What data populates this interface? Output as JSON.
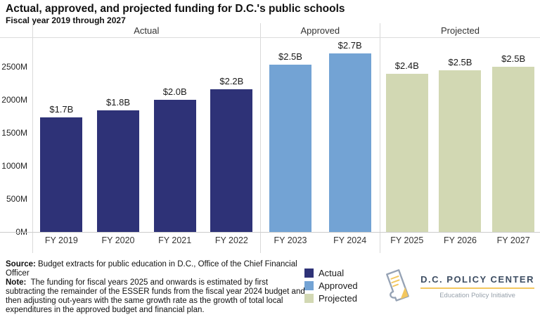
{
  "title": "Actual, approved, and projected funding for D.C.'s public schools",
  "subtitle": "Fiscal year 2019 through 2027",
  "colors": {
    "actual": "#2e3277",
    "approved": "#73a3d4",
    "projected": "#d2d8b3",
    "divider": "#d9d9d9",
    "logo_yellow": "#f3c75f",
    "logo_navy": "#3e4e63"
  },
  "chart_data": {
    "type": "bar",
    "title": "Actual, approved, and projected funding for D.C.'s public schools",
    "subtitle": "Fiscal year 2019 through 2027",
    "xlabel": "",
    "ylabel": "",
    "ylim": [
      0,
      2950
    ],
    "grid": false,
    "yticks": [
      {
        "value": 0,
        "label": "0M"
      },
      {
        "value": 500,
        "label": "500M"
      },
      {
        "value": 1000,
        "label": "1000M"
      },
      {
        "value": 1500,
        "label": "1500M"
      },
      {
        "value": 2000,
        "label": "2000M"
      },
      {
        "value": 2500,
        "label": "2500M"
      }
    ],
    "groups": [
      {
        "label": "Actual",
        "color": "#2e3277",
        "panel_flex": 324,
        "bars": [
          {
            "category": "FY 2019",
            "value": 1735,
            "label": "$1.7B"
          },
          {
            "category": "FY 2020",
            "value": 1840,
            "label": "$1.8B"
          },
          {
            "category": "FY 2021",
            "value": 2000,
            "label": "$2.0B"
          },
          {
            "category": "FY 2022",
            "value": 2165,
            "label": "$2.2B"
          }
        ]
      },
      {
        "label": "Approved",
        "color": "#73a3d4",
        "panel_flex": 170,
        "bars": [
          {
            "category": "FY 2023",
            "value": 2530,
            "label": "$2.5B"
          },
          {
            "category": "FY 2024",
            "value": 2710,
            "label": "$2.7B"
          }
        ]
      },
      {
        "label": "Projected",
        "color": "#d2d8b3",
        "panel_flex": 228,
        "bars": [
          {
            "category": "FY 2025",
            "value": 2400,
            "label": "$2.4B"
          },
          {
            "category": "FY 2026",
            "value": 2450,
            "label": "$2.5B"
          },
          {
            "category": "FY 2027",
            "value": 2500,
            "label": "$2.5B"
          }
        ]
      }
    ]
  },
  "legend": {
    "items": [
      {
        "label": "Actual",
        "color": "#2e3277"
      },
      {
        "label": "Approved",
        "color": "#73a3d4"
      },
      {
        "label": "Projected",
        "color": "#d2d8b3"
      }
    ]
  },
  "footer": {
    "source_label": "Source:",
    "source_text": " Budget extracts for public education in D.C., Office of the Chief Financial Officer",
    "note_label": "Note:",
    "note_text": "  The funding for fiscal years 2025 and onwards is estimated by first subtracting the remainder of the ESSER funds from the fiscal year 2024 budget and then adjusting out-years with the same growth rate as the growth of total local expenditures in the approved budget and financial plan."
  },
  "logo": {
    "name": "D.C. POLICY CENTER",
    "tagline": "Education Policy Initiative"
  }
}
